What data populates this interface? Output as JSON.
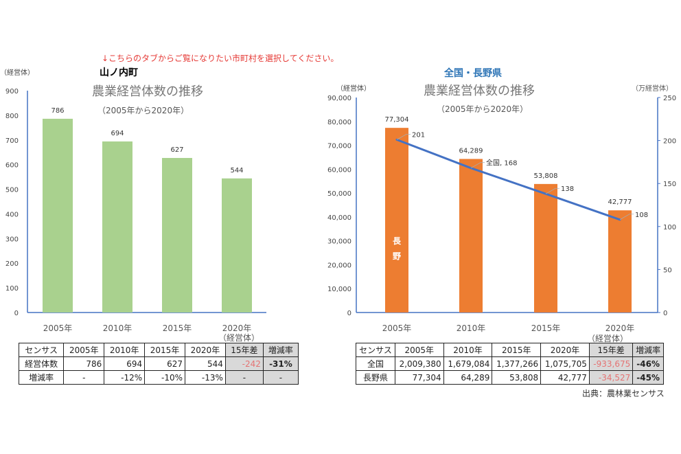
{
  "instruction": "↓こちらのタブからご覧になりたい市町村を選択してください。",
  "source": "出典：農林業センサス",
  "colors": {
    "green_bar": "#a9d18e",
    "orange_bar": "#ed7d31",
    "line": "#4472c4",
    "axis": "#4472c4",
    "negative": "#e57373",
    "instruction": "#e53935",
    "region_title": "#2e75b6"
  },
  "chart_data": [
    {
      "type": "bar",
      "region": "山ノ内町",
      "title": "農業経営体数の推移",
      "subtitle": "（2005年から2020年）",
      "ylabel": "（経営体）",
      "categories": [
        "2005年",
        "2010年",
        "2015年",
        "2020年"
      ],
      "x_unit_label": "（経営体）",
      "values": [
        786,
        694,
        627,
        544
      ],
      "data_labels": [
        "786",
        "694",
        "627",
        "544"
      ],
      "ylim": [
        0,
        900
      ],
      "yticks": [
        "0",
        "100",
        "200",
        "300",
        "400",
        "500",
        "600",
        "700",
        "800",
        "900"
      ],
      "grid": false
    },
    {
      "type": "bar+line",
      "region": "全国・長野県",
      "title": "農業経営体数の推移",
      "subtitle": "（2005年から2020年）",
      "ylabel": "（経営体）",
      "y2label": "（万経営体）",
      "categories": [
        "2005年",
        "2010年",
        "2015年",
        "2020年"
      ],
      "x_unit_label": "（経営体）",
      "ylim": [
        0,
        90000
      ],
      "y2lim": [
        0,
        250
      ],
      "yticks": [
        "0",
        "10,000",
        "20,000",
        "30,000",
        "40,000",
        "50,000",
        "60,000",
        "70,000",
        "80,000",
        "90,000"
      ],
      "y2ticks": [
        "0",
        "50",
        "100",
        "150",
        "200",
        "250"
      ],
      "series": [
        {
          "name": "長野",
          "type": "bar",
          "axis": "left",
          "values": [
            77304,
            64289,
            53808,
            42777
          ],
          "data_labels": [
            "77,304",
            "64,289",
            "53,808",
            "42,777"
          ],
          "label_chars": [
            "長",
            "野"
          ]
        },
        {
          "name": "全国",
          "type": "line",
          "axis": "right",
          "values": [
            201,
            168,
            138,
            108
          ],
          "data_labels": [
            "201",
            "全国, 168",
            "138",
            "108"
          ]
        }
      ],
      "grid": false
    }
  ],
  "tables": {
    "left": {
      "header": [
        "センサス",
        "2005年",
        "2010年",
        "2015年",
        "2020年",
        "15年差",
        "増減率"
      ],
      "rows": [
        [
          "経営体数",
          "786",
          "694",
          "627",
          "544",
          "-242",
          "-31%"
        ],
        [
          "増減率",
          "-",
          "-12%",
          "-10%",
          "-13%",
          "-",
          "-"
        ]
      ]
    },
    "right": {
      "header": [
        "センサス",
        "2005年",
        "2010年",
        "2015年",
        "2020年",
        "15年差",
        "増減率"
      ],
      "rows": [
        [
          "全国",
          "2,009,380",
          "1,679,084",
          "1,377,266",
          "1,075,705",
          "-933,675",
          "-46%"
        ],
        [
          "長野県",
          "77,304",
          "64,289",
          "53,808",
          "42,777",
          "-34,527",
          "-45%"
        ]
      ]
    }
  }
}
